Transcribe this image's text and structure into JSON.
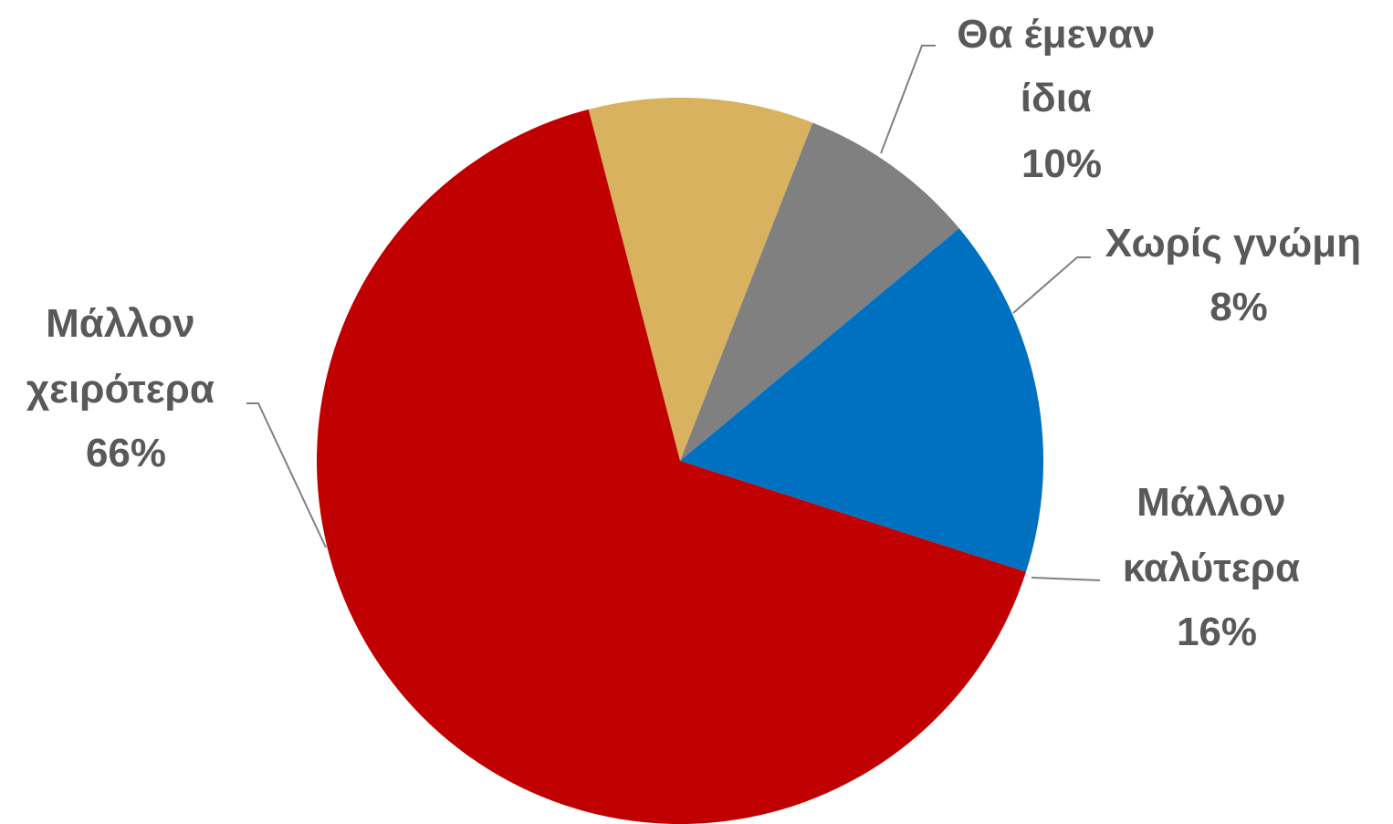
{
  "chart_data": {
    "type": "pie",
    "start_angle_deg": -14.6,
    "direction": "clockwise",
    "slices": [
      {
        "name": "Θα έμεναν ίδια",
        "label_lines": [
          "Θα έμεναν",
          "ίδια"
        ],
        "value": 10,
        "value_label": "10%",
        "color": "#D9B25F"
      },
      {
        "name": "Χωρίς γνώμη",
        "label_lines": [
          "Χωρίς γνώμη"
        ],
        "value": 8,
        "value_label": "8%",
        "color": "#808080"
      },
      {
        "name": "Μάλλον καλύτερα",
        "label_lines": [
          "Μάλλον",
          "καλύτερα"
        ],
        "value": 16,
        "value_label": "16%",
        "color": "#0070C0"
      },
      {
        "name": "Μάλλον χειρότερα",
        "label_lines": [
          "Μάλλον",
          "χειρότερα"
        ],
        "value": 66,
        "value_label": "66%",
        "color": "#C00000"
      }
    ]
  }
}
